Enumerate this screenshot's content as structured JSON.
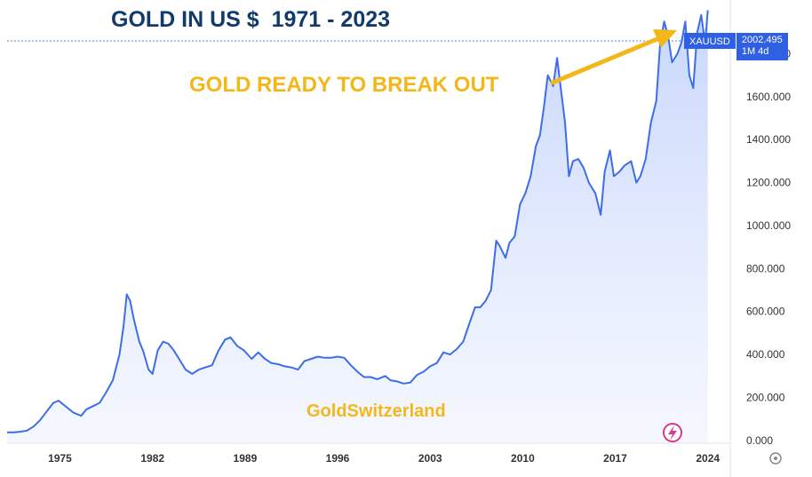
{
  "title": "GOLD IN US $  1971 - 2023",
  "annotation": "GOLD READY TO BREAK OUT",
  "watermark": "GoldSwitzerland",
  "price_label": {
    "symbol": "XAUUSD",
    "price": "2002.495",
    "change": "1M 4d"
  },
  "colors": {
    "line": "#3b6ee8",
    "title": "#123b6b",
    "annotation": "#f4b71a",
    "badge": "#2f5fe3"
  },
  "icons": [
    "lightning-icon",
    "settings-icon"
  ],
  "chart_data": {
    "type": "area",
    "title": "GOLD IN US $  1971 - 2023",
    "xlabel": "",
    "ylabel": "",
    "xlim": [
      1971.0,
      2025.7
    ],
    "ylim": [
      -170,
      2050
    ],
    "grid": false,
    "x_ticks": [
      "1975",
      "1982",
      "1989",
      "1996",
      "2003",
      "2010",
      "2017",
      "2024"
    ],
    "y_ticks": [
      "0.000",
      "200.000",
      "400.000",
      "600.000",
      "800.000",
      "1000.000",
      "1200.000",
      "1400.000",
      "1600.000",
      "1800.000"
    ],
    "series": [
      {
        "x": [
          1971.0,
          1971.5,
          1972.0,
          1972.5,
          1973.0,
          1973.5,
          1974.0,
          1974.5,
          1974.9,
          1975.5,
          1976.0,
          1976.6,
          1977.0,
          1977.5,
          1978.0,
          1978.5,
          1979.0,
          1979.5,
          1979.8,
          1980.05,
          1980.3,
          1980.6,
          1981.0,
          1981.3,
          1981.7,
          1982.0,
          1982.4,
          1982.8,
          1983.2,
          1983.6,
          1984.0,
          1984.5,
          1985.0,
          1985.5,
          1986.0,
          1986.5,
          1987.0,
          1987.5,
          1987.9,
          1988.4,
          1988.9,
          1989.5,
          1990.0,
          1990.5,
          1991.0,
          1991.5,
          1992.0,
          1992.5,
          1993.0,
          1993.5,
          1994.0,
          1994.5,
          1995.0,
          1995.5,
          1996.0,
          1996.5,
          1997.0,
          1997.5,
          1998.0,
          1998.5,
          1999.0,
          1999.6,
          2000.0,
          2000.5,
          2001.0,
          2001.5,
          2002.0,
          2002.5,
          2003.0,
          2003.5,
          2004.0,
          2004.5,
          2005.0,
          2005.5,
          2006.0,
          2006.4,
          2006.8,
          2007.2,
          2007.6,
          2008.0,
          2008.3,
          2008.7,
          2009.0,
          2009.4,
          2009.8,
          2010.2,
          2010.6,
          2011.0,
          2011.3,
          2011.6,
          2011.9,
          2012.3,
          2012.6,
          2012.9,
          2013.2,
          2013.5,
          2013.8,
          2014.2,
          2014.6,
          2015.0,
          2015.5,
          2015.9,
          2016.2,
          2016.6,
          2016.9,
          2017.3,
          2017.7,
          2018.2,
          2018.6,
          2018.9,
          2019.3,
          2019.7,
          2020.1,
          2020.4,
          2020.7,
          2021.0,
          2021.3,
          2021.7,
          2022.0,
          2022.3,
          2022.6,
          2022.9,
          2023.2,
          2023.5,
          2023.8,
          2024.0
        ],
        "values": [
          38,
          38,
          41,
          46,
          65,
          95,
          135,
          175,
          185,
          155,
          130,
          115,
          145,
          160,
          175,
          225,
          280,
          400,
          530,
          680,
          650,
          560,
          460,
          415,
          330,
          310,
          420,
          460,
          450,
          420,
          380,
          330,
          310,
          330,
          340,
          350,
          420,
          470,
          480,
          440,
          420,
          380,
          410,
          380,
          360,
          355,
          345,
          340,
          330,
          370,
          380,
          390,
          385,
          385,
          390,
          385,
          350,
          320,
          295,
          295,
          285,
          300,
          280,
          275,
          265,
          270,
          305,
          320,
          345,
          360,
          410,
          400,
          425,
          460,
          550,
          620,
          620,
          650,
          700,
          930,
          900,
          850,
          920,
          950,
          1100,
          1150,
          1230,
          1370,
          1420,
          1550,
          1700,
          1650,
          1780,
          1630,
          1480,
          1230,
          1300,
          1310,
          1270,
          1200,
          1150,
          1050,
          1250,
          1350,
          1230,
          1250,
          1280,
          1300,
          1200,
          1230,
          1310,
          1480,
          1580,
          1850,
          1950,
          1880,
          1760,
          1800,
          1850,
          1950,
          1700,
          1640,
          1900,
          1980,
          1850,
          2002
        ]
      }
    ]
  }
}
